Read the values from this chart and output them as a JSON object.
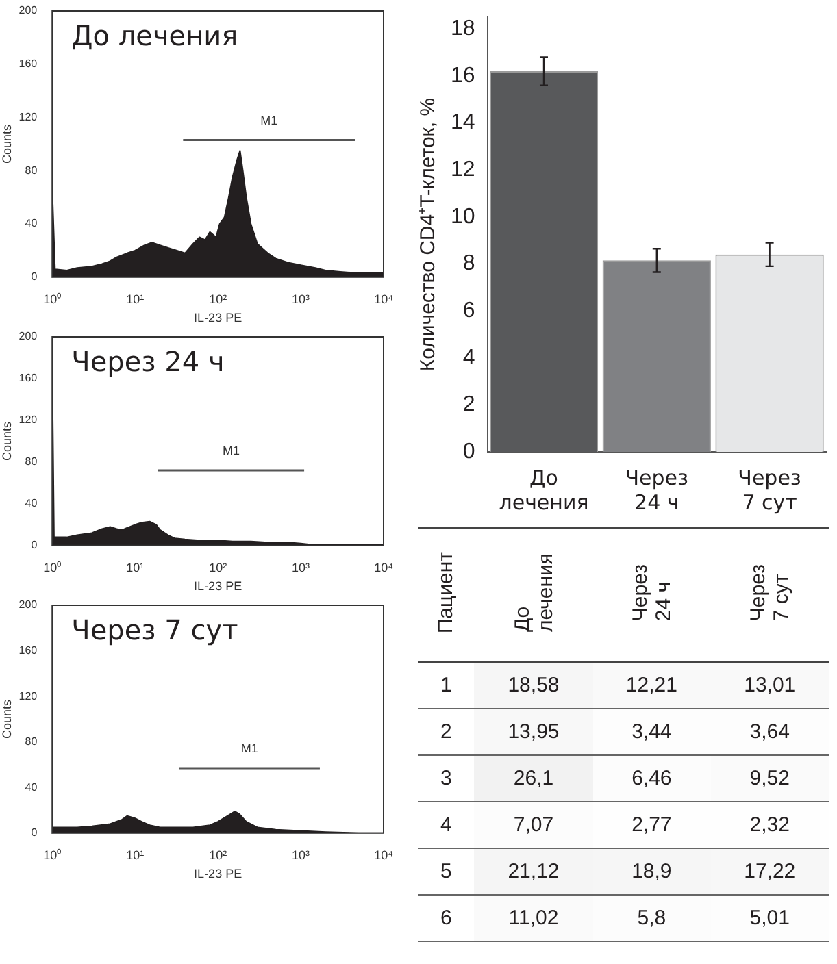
{
  "chart_data": [
    {
      "type": "area",
      "title": "До лечения",
      "xlabel": "IL-23 PE",
      "ylabel": "Counts",
      "log": "x",
      "xlim": [
        1,
        10000
      ],
      "xticks": [
        {
          "value": 1,
          "label": "10⁰"
        },
        {
          "value": 10,
          "label": "10¹"
        },
        {
          "value": 100,
          "label": "10²"
        },
        {
          "value": 1000,
          "label": "10³"
        },
        {
          "value": 10000,
          "label": "10⁴"
        }
      ],
      "ylim": [
        0,
        200
      ],
      "yticks": [
        0,
        40,
        80,
        120,
        160,
        200
      ],
      "annotations": [
        "M1"
      ],
      "series": [
        {
          "color": "#231f20",
          "x": [
            1,
            1.08,
            1.5,
            2,
            3,
            4,
            5,
            6,
            8,
            10,
            13,
            16,
            20,
            25,
            32,
            40,
            50,
            60,
            70,
            80,
            95,
            105,
            120,
            135,
            150,
            170,
            185,
            200,
            220,
            250,
            300,
            400,
            500,
            700,
            1000,
            1500,
            2000,
            3000,
            5000,
            7000,
            10000
          ],
          "values": [
            66,
            6,
            5,
            7,
            8,
            10,
            12,
            15,
            18,
            20,
            24,
            26,
            24,
            22,
            20,
            18,
            25,
            30,
            28,
            34,
            30,
            40,
            45,
            60,
            75,
            88,
            95,
            80,
            60,
            40,
            25,
            18,
            14,
            11,
            9,
            7,
            5,
            4,
            3,
            3,
            3
          ]
        },
        {
          "type": "line",
          "color": "#555555",
          "x": [
            38,
            4500
          ],
          "values": [
            103,
            103
          ]
        }
      ]
    },
    {
      "type": "area",
      "title": "Через 24 ч",
      "xlabel": "IL-23 PE",
      "ylabel": "Counts",
      "log": "x",
      "xlim": [
        1,
        10000
      ],
      "xticks": [
        {
          "value": 1,
          "label": "10⁰"
        },
        {
          "value": 10,
          "label": "10¹"
        },
        {
          "value": 100,
          "label": "10²"
        },
        {
          "value": 1000,
          "label": "10³"
        },
        {
          "value": 10000,
          "label": "10⁴"
        }
      ],
      "ylim": [
        0,
        200
      ],
      "yticks": [
        0,
        40,
        80,
        120,
        160,
        200
      ],
      "annotations": [
        "M1"
      ],
      "series": [
        {
          "color": "#231f20",
          "x": [
            1,
            1.05,
            1.5,
            2,
            3,
            4,
            5,
            6,
            7,
            8,
            10,
            12,
            15,
            18,
            20,
            25,
            30,
            40,
            60,
            100,
            150,
            250,
            400,
            700,
            1000,
            1300,
            2000,
            5000,
            10000
          ],
          "values": [
            166,
            8,
            8,
            10,
            12,
            16,
            18,
            16,
            15,
            17,
            20,
            22,
            23,
            20,
            15,
            10,
            7,
            6,
            5,
            5,
            4,
            4,
            3,
            3,
            2,
            1,
            1,
            1,
            1
          ]
        },
        {
          "type": "line",
          "color": "#555555",
          "x": [
            19,
            1100
          ],
          "values": [
            72,
            72
          ]
        }
      ]
    },
    {
      "type": "area",
      "title": "Через 7 сут",
      "xlabel": "IL-23 PE",
      "ylabel": "Counts",
      "log": "x",
      "xlim": [
        1,
        10000
      ],
      "xticks": [
        {
          "value": 1,
          "label": "10⁰"
        },
        {
          "value": 10,
          "label": "10¹"
        },
        {
          "value": 100,
          "label": "10²"
        },
        {
          "value": 1000,
          "label": "10³"
        },
        {
          "value": 10000,
          "label": "10⁴"
        }
      ],
      "ylim": [
        0,
        200
      ],
      "yticks": [
        0,
        40,
        80,
        120,
        160,
        200
      ],
      "annotations": [
        "M1"
      ],
      "series": [
        {
          "color": "#231f20",
          "x": [
            1,
            2,
            3,
            5,
            7,
            8,
            9,
            10,
            12,
            15,
            20,
            30,
            50,
            80,
            100,
            130,
            160,
            180,
            220,
            300,
            500,
            1000,
            2000,
            5000,
            10000
          ],
          "values": [
            5,
            5,
            6,
            8,
            12,
            15,
            14,
            13,
            10,
            7,
            5,
            5,
            5,
            7,
            10,
            15,
            19,
            17,
            10,
            5,
            3,
            2,
            1,
            0,
            0
          ]
        },
        {
          "type": "line",
          "color": "#555555",
          "x": [
            34,
            1700
          ],
          "values": [
            57,
            57
          ]
        }
      ]
    },
    {
      "type": "bar",
      "ylabel": "Количество CD4⁺T-клеток, %",
      "categories": [
        "До\nлечения",
        "Через\n24 ч",
        "Через\n7 сут"
      ],
      "values": [
        16.2,
        8.15,
        8.4
      ],
      "errors": [
        0.6,
        0.5,
        0.5
      ],
      "colors": [
        "#58595b",
        "#808184",
        "#e6e7e8"
      ],
      "ylim": [
        0,
        18.5
      ],
      "yticks": [
        0,
        2,
        4,
        6,
        8,
        10,
        12,
        14,
        16,
        18
      ]
    },
    {
      "type": "heatmap",
      "ylabel": "Пациент",
      "categories": [
        "До\nлечения",
        "Через\n24 ч",
        "Через\n7 сут"
      ],
      "y_categories": [
        "1",
        "2",
        "3",
        "4",
        "5",
        "6"
      ],
      "cells": [
        [
          18.58,
          12.21,
          13.01
        ],
        [
          13.95,
          3.44,
          3.64
        ],
        [
          26.1,
          6.46,
          9.52
        ],
        [
          7.07,
          2.77,
          2.32
        ],
        [
          21.12,
          18.9,
          17.22
        ],
        [
          11.02,
          5.8,
          5.01
        ]
      ],
      "cell_labels": [
        [
          "18,58",
          "12,21",
          "13,01"
        ],
        [
          "13,95",
          "3,44",
          "3,64"
        ],
        [
          "26,1",
          "6,46",
          "9,52"
        ],
        [
          "7,07",
          "2,77",
          "2,32"
        ],
        [
          "21,12",
          "18,9",
          "17,22"
        ],
        [
          "11,02",
          "5,8",
          "5,01"
        ]
      ]
    }
  ]
}
